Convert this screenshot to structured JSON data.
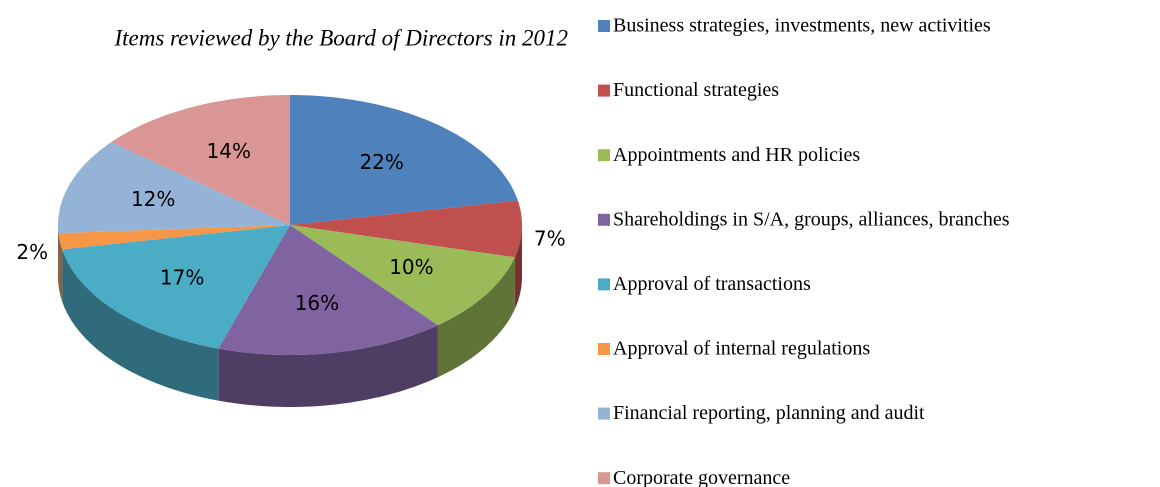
{
  "chart_data": {
    "type": "pie3d",
    "title": "Items reviewed by the Board of Directors in 2012",
    "categories": [
      "Business strategies, investments, new activities",
      "Functional strategies",
      "Appointments and HR policies",
      "Shareholdings in S/A, groups, alliances, branches",
      "Approval of transactions",
      "Approval of internal regulations",
      "Financial reporting, planning and audit",
      "Corporate governance"
    ],
    "values": [
      22,
      7,
      10,
      16,
      17,
      2,
      12,
      14
    ],
    "colors": [
      "#4F81BD",
      "#C0504D",
      "#9BBB59",
      "#8064A2",
      "#4BACC6",
      "#F79646",
      "#95B3D7",
      "#D99694"
    ],
    "legend": "right"
  }
}
